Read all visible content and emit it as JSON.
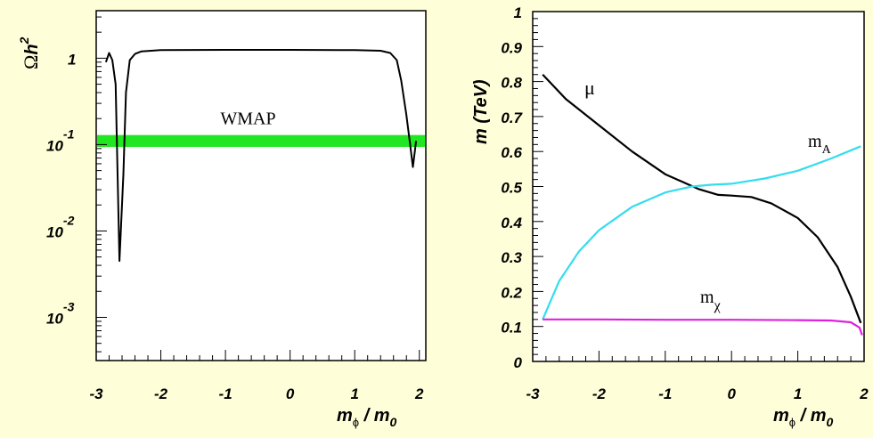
{
  "background": "#fefed8",
  "chart_data": [
    {
      "type": "line",
      "x_label": {
        "main": "m",
        "sub": "ϕ",
        "rest": " / m",
        "sub2": "0"
      },
      "y_label": {
        "main": "Ω",
        "rest": "h",
        "sup": "2"
      },
      "x_range": [
        -3,
        2.1
      ],
      "y_range_log10": [
        -3.5,
        0.55
      ],
      "y_scale": "log",
      "x_ticks": [
        "-3",
        "-2",
        "-1",
        "0",
        "1",
        "2"
      ],
      "y_ticks": [
        {
          "base": "1",
          "exp": ""
        },
        {
          "base": "10",
          "exp": "-1"
        },
        {
          "base": "10",
          "exp": "-2"
        },
        {
          "base": "10",
          "exp": "-3"
        }
      ],
      "band": {
        "label": "WMAP",
        "color": "#22e622",
        "y_range": [
          0.094,
          0.129
        ]
      },
      "series": [
        {
          "color": "#000000",
          "points": [
            [
              -2.85,
              0.9
            ],
            [
              -2.8,
              1.15
            ],
            [
              -2.75,
              0.95
            ],
            [
              -2.7,
              0.5
            ],
            [
              -2.64,
              0.0045
            ],
            [
              -2.58,
              0.045
            ],
            [
              -2.54,
              0.4
            ],
            [
              -2.48,
              0.95
            ],
            [
              -2.4,
              1.12
            ],
            [
              -2.3,
              1.2
            ],
            [
              -2.0,
              1.24
            ],
            [
              -1.0,
              1.25
            ],
            [
              0.0,
              1.25
            ],
            [
              1.0,
              1.24
            ],
            [
              1.4,
              1.22
            ],
            [
              1.55,
              1.15
            ],
            [
              1.65,
              0.95
            ],
            [
              1.72,
              0.55
            ],
            [
              1.8,
              0.22
            ],
            [
              1.85,
              0.11
            ],
            [
              1.9,
              0.055
            ],
            [
              1.95,
              0.11
            ]
          ]
        }
      ]
    },
    {
      "type": "line",
      "x_label": {
        "main": "m",
        "sub": "ϕ",
        "rest": " / m",
        "sub2": "0"
      },
      "y_label": "m (TeV)",
      "x_range": [
        -3,
        2
      ],
      "y_range": [
        0,
        1
      ],
      "x_ticks": [
        "-3",
        "-2",
        "-1",
        "0",
        "1",
        "2"
      ],
      "y_ticks": [
        "0",
        "0.1",
        "0.2",
        "0.3",
        "0.4",
        "0.5",
        "0.6",
        "0.7",
        "0.8",
        "0.9",
        "1"
      ],
      "series": [
        {
          "name": "μ",
          "color": "#000000",
          "points": [
            [
              -2.85,
              0.82
            ],
            [
              -2.5,
              0.75
            ],
            [
              -2.0,
              0.675
            ],
            [
              -1.5,
              0.6
            ],
            [
              -1.0,
              0.535
            ],
            [
              -0.5,
              0.493
            ],
            [
              -0.2,
              0.476
            ],
            [
              0.0,
              0.474
            ],
            [
              0.3,
              0.47
            ],
            [
              0.6,
              0.452
            ],
            [
              1.0,
              0.41
            ],
            [
              1.3,
              0.355
            ],
            [
              1.6,
              0.27
            ],
            [
              1.8,
              0.185
            ],
            [
              1.95,
              0.11
            ]
          ]
        },
        {
          "name": "m",
          "name_sub": "A",
          "color": "#33ddee",
          "points": [
            [
              -2.85,
              0.12
            ],
            [
              -2.6,
              0.23
            ],
            [
              -2.3,
              0.315
            ],
            [
              -2.0,
              0.375
            ],
            [
              -1.5,
              0.442
            ],
            [
              -1.0,
              0.483
            ],
            [
              -0.6,
              0.5
            ],
            [
              -0.3,
              0.505
            ],
            [
              0.0,
              0.508
            ],
            [
              0.5,
              0.523
            ],
            [
              1.0,
              0.545
            ],
            [
              1.5,
              0.58
            ],
            [
              1.95,
              0.615
            ]
          ]
        },
        {
          "name": "m",
          "name_sub": "χ",
          "color": "#dd22dd",
          "points": [
            [
              -2.85,
              0.12
            ],
            [
              -2.0,
              0.12
            ],
            [
              -1.0,
              0.119
            ],
            [
              0.0,
              0.119
            ],
            [
              1.0,
              0.118
            ],
            [
              1.5,
              0.117
            ],
            [
              1.8,
              0.112
            ],
            [
              1.93,
              0.097
            ],
            [
              1.97,
              0.075
            ]
          ]
        }
      ]
    }
  ]
}
